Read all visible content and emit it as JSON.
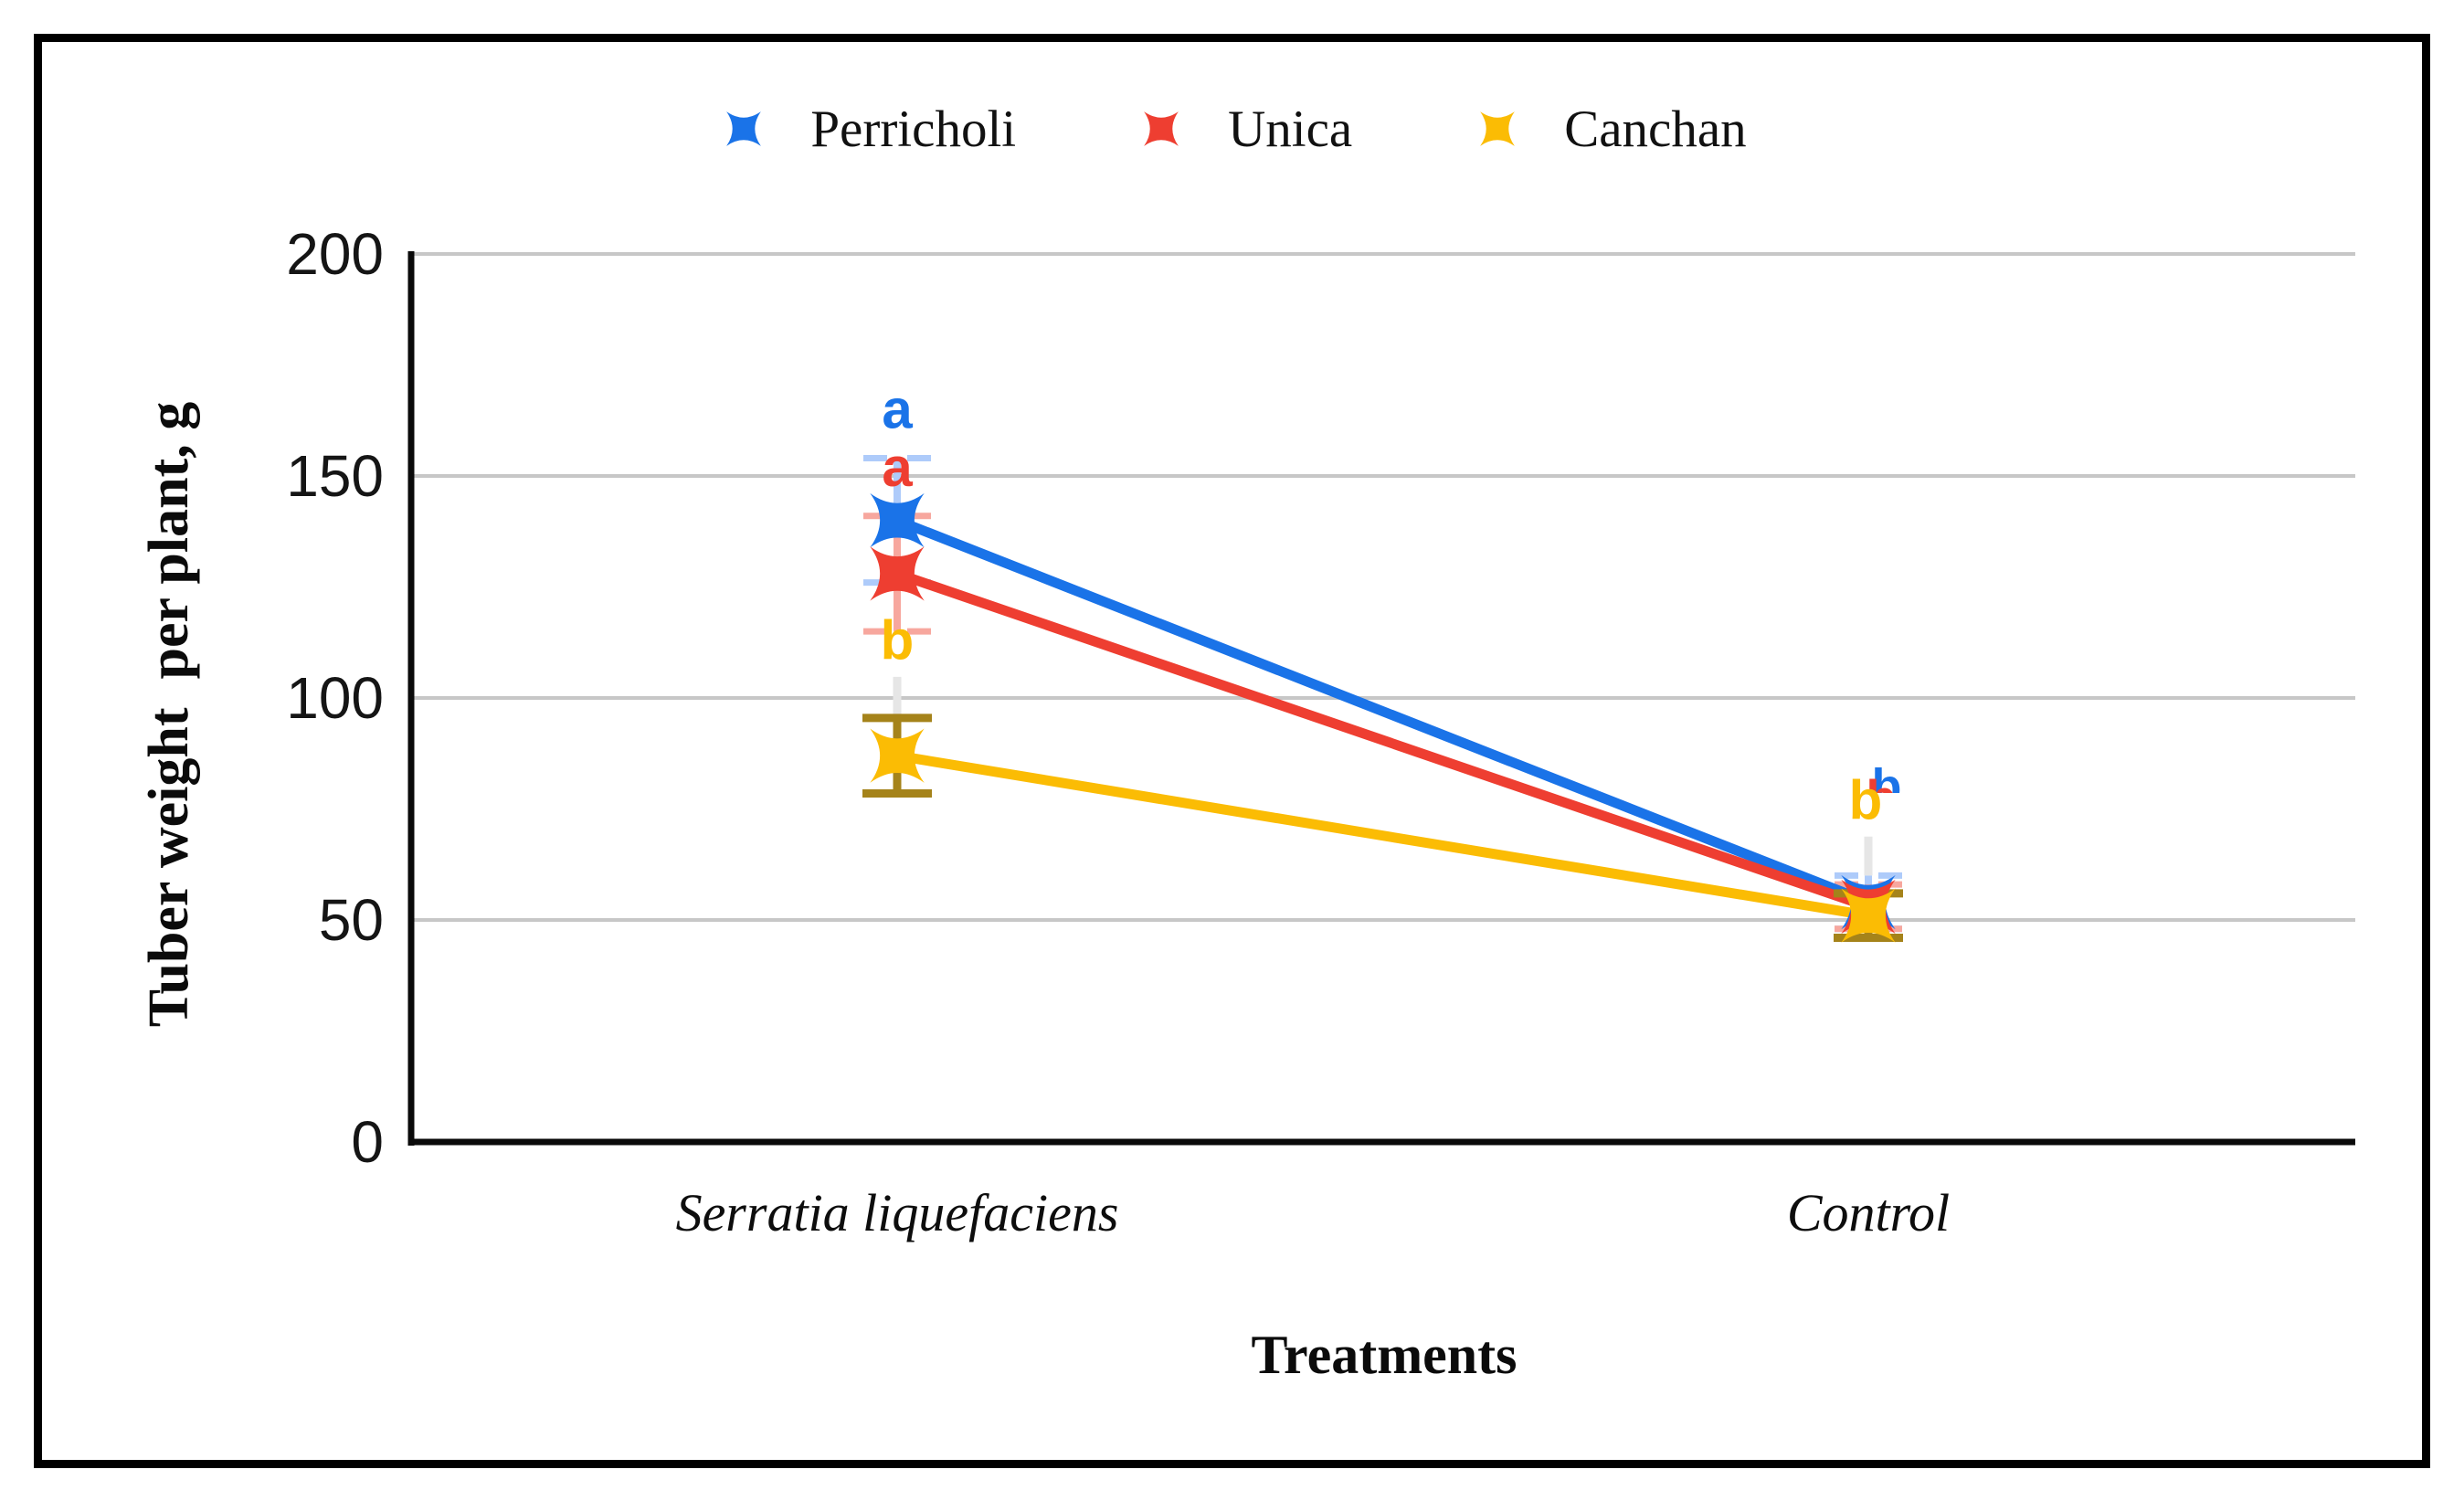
{
  "figure": {
    "background": "#ffffff",
    "border_color": "#000000",
    "grid_color": "#c7c7c7",
    "axis_color": "#0a0a0a"
  },
  "legend": {
    "items": [
      {
        "label": "Perricholi",
        "color": "#1a73e8",
        "marker": "x-star-icon"
      },
      {
        "label": "Unica",
        "color": "#ee3e31",
        "marker": "x-star-icon"
      },
      {
        "label": "Canchan",
        "color": "#fbbc04",
        "marker": "x-star-icon"
      }
    ]
  },
  "axes": {
    "y_title": "Tuber weight  per plant, g",
    "x_title": "Treatments",
    "y_ticks": [
      "200",
      "150",
      "100",
      "50",
      "0"
    ],
    "categories": [
      "Serratia liquefaciens",
      "Control"
    ]
  },
  "chart_data": {
    "type": "line",
    "title": "",
    "categories": [
      "Serratia liquefaciens",
      "Control"
    ],
    "xlabel": "Treatments",
    "ylabel": "Tuber weight  per plant, g",
    "ylim": [
      0,
      200
    ],
    "yticks": [
      0,
      50,
      100,
      150,
      200
    ],
    "grid": true,
    "legend_position": "top",
    "marker_style": "four-point-star-x",
    "series": [
      {
        "name": "Perricholi",
        "color": "#1a73e8",
        "error_color": "#aecbfa",
        "error_cap_style": "dashed",
        "points": [
          {
            "category": "Serratia liquefaciens",
            "value": 140,
            "error": 14,
            "letter": "a",
            "letter_y": 165,
            "letter_display": "full"
          },
          {
            "category": "Control",
            "value": 54,
            "error": 6,
            "letter": "b",
            "letter_y": 80,
            "letter_display": "partial"
          }
        ]
      },
      {
        "name": "Unica",
        "color": "#ee3e31",
        "error_color": "#f7a79e",
        "error_cap_style": "dashed",
        "points": [
          {
            "category": "Serratia liquefaciens",
            "value": 128,
            "error": 13,
            "letter": "a",
            "letter_y": 152,
            "letter_display": "full"
          },
          {
            "category": "Control",
            "value": 53,
            "error": 5,
            "letter": "b",
            "letter_y": 77.5,
            "letter_display": "partial"
          }
        ]
      },
      {
        "name": "Canchan",
        "color": "#fbbc04",
        "error_color": "#a5831a",
        "error_cap_style": "solid",
        "points": [
          {
            "category": "Serratia liquefaciens",
            "value": 87,
            "error": 8.5,
            "letter": "b",
            "letter_y": 113,
            "letter_display": "full"
          },
          {
            "category": "Control",
            "value": 51,
            "error": 5,
            "letter": "b",
            "letter_y": 77,
            "letter_display": "full"
          }
        ]
      }
    ]
  }
}
